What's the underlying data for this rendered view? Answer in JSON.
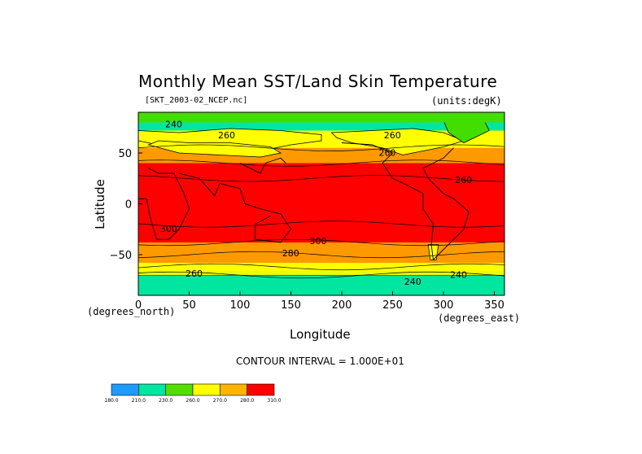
{
  "title": "Monthly Mean SST/Land Skin Temperature",
  "file_label": "[SKT_2003-02_NCEP.nc]",
  "units_label": "(units:degK)",
  "contour_interval": "CONTOUR INTERVAL = 1.000E+01",
  "chart_data": {
    "type": "heatmap",
    "title": "Monthly Mean SST/Land Skin Temperature",
    "xlabel": "Longitude",
    "ylabel": "Latitude",
    "x_unit": "(degrees_east)",
    "y_unit": "(degrees_north)",
    "xlim": [
      0,
      360
    ],
    "ylim": [
      -90,
      90
    ],
    "x_ticks": [
      0,
      50,
      100,
      150,
      200,
      250,
      300,
      350
    ],
    "y_ticks": [
      50,
      0,
      -50
    ],
    "y_tick_labels": [
      "50",
      "0",
      "−50"
    ],
    "contour_labels": [
      "240",
      "260",
      "260",
      "260",
      "260",
      "300",
      "300",
      "280",
      "260",
      "240",
      "240",
      "240"
    ],
    "bands": [
      {
        "lat_from": 90,
        "lat_to": 72,
        "value": 240
      },
      {
        "lat_from": 72,
        "lat_to": 55,
        "value": 270
      },
      {
        "lat_from": 55,
        "lat_to": 40,
        "value": 285
      },
      {
        "lat_from": 40,
        "lat_to": -38,
        "value": 300
      },
      {
        "lat_from": -38,
        "lat_to": -58,
        "value": 285
      },
      {
        "lat_from": -58,
        "lat_to": -66,
        "value": 275
      },
      {
        "lat_from": -66,
        "lat_to": -90,
        "value": 240
      }
    ],
    "colorbar": {
      "colors": [
        "#1e9bff",
        "#00e6a0",
        "#55dc00",
        "#ffff00",
        "#ffb400",
        "#ff0000"
      ],
      "labels": [
        "180.0",
        "210.0",
        "230.0",
        "260.0",
        "270.0",
        "280.0",
        "310.0"
      ]
    },
    "palette": {
      "ocean_warm": "#ff0000",
      "temperate": "#ff9900",
      "cool": "#ffff00",
      "cold": "#44dd00",
      "frozen": "#00e6a0"
    }
  }
}
